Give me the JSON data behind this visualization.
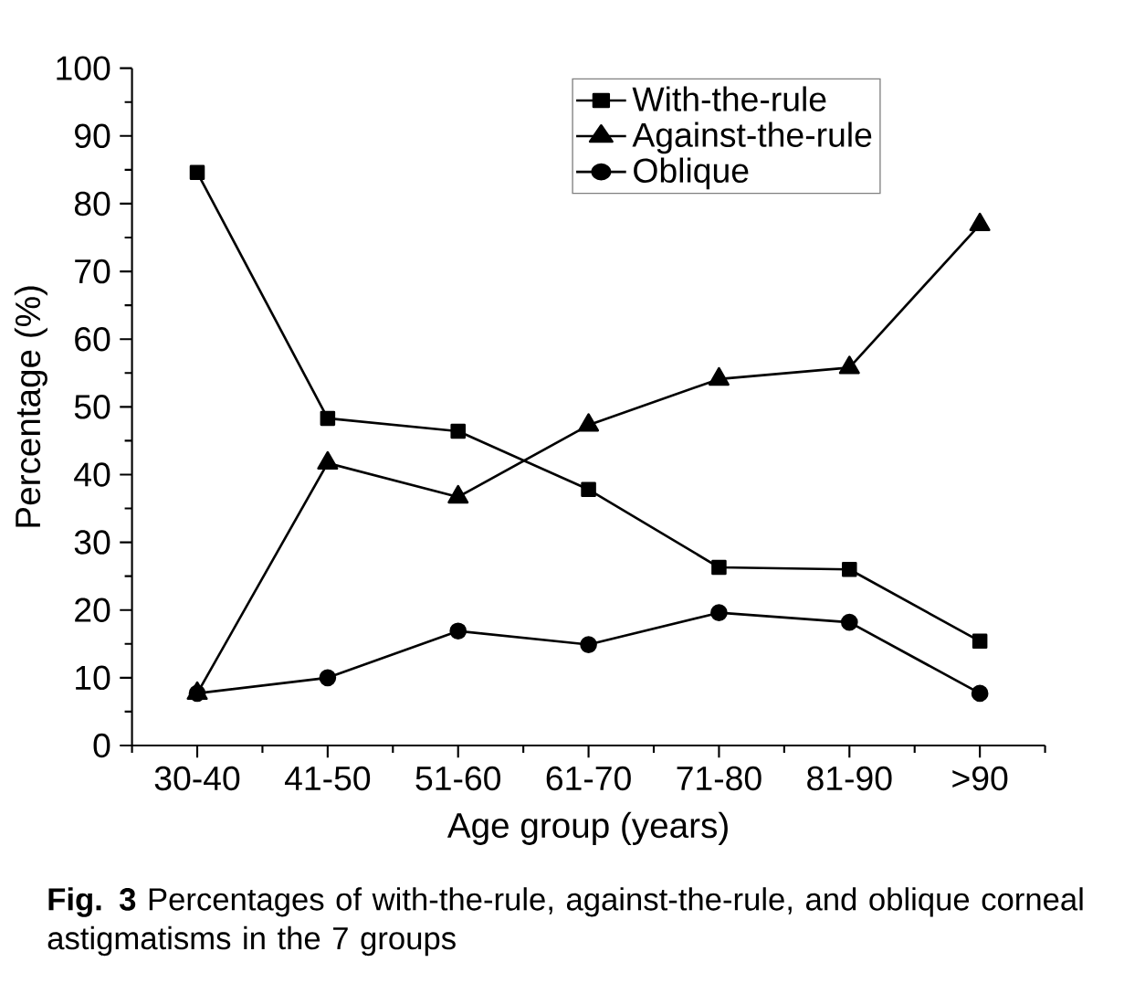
{
  "chart_data": {
    "type": "line",
    "xlabel": "Age group (years)",
    "ylabel": "Percentage (%)",
    "categories": [
      "30-40",
      "41-50",
      "51-60",
      "61-70",
      "71-80",
      "81-90",
      ">90"
    ],
    "series": [
      {
        "name": "With-the-rule",
        "color": "#000000",
        "marker": "square",
        "values": [
          84.6,
          48.3,
          46.4,
          37.8,
          26.3,
          26.0,
          15.4
        ]
      },
      {
        "name": "Against-the-rule",
        "color": "#000000",
        "marker": "triangle",
        "values": [
          7.7,
          41.7,
          36.7,
          47.3,
          54.1,
          55.8,
          76.9
        ]
      },
      {
        "name": "Oblique",
        "color": "#000000",
        "marker": "circle",
        "values": [
          7.7,
          10.0,
          16.9,
          14.9,
          19.6,
          18.2,
          7.7
        ]
      }
    ],
    "ylim": [
      0,
      100
    ],
    "yticks": [
      0,
      10,
      20,
      30,
      40,
      50,
      60,
      70,
      80,
      90,
      100
    ],
    "legend": "top right",
    "line_style": "solid",
    "annotations": [
      "**Fig. 3** Percentages of with-the-rule, against-the-rule, and oblique corneal astigmatisms in the 7 groups"
    ]
  }
}
